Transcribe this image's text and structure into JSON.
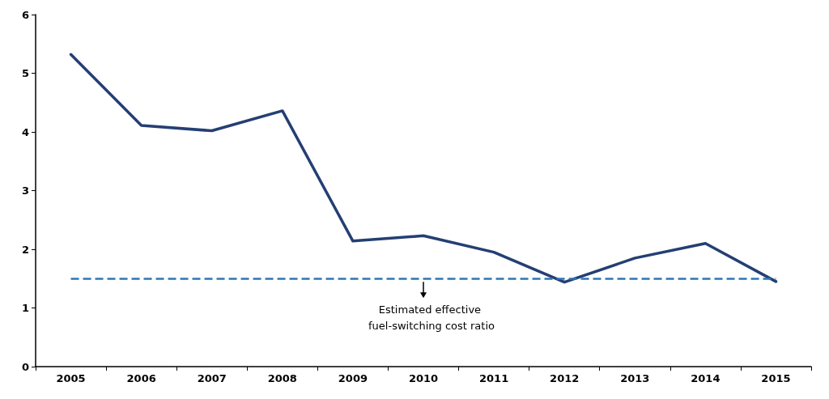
{
  "chart_data": {
    "type": "line",
    "categories": [
      "2005",
      "2006",
      "2007",
      "2008",
      "2009",
      "2010",
      "2011",
      "2012",
      "2013",
      "2014",
      "2015"
    ],
    "series": [
      {
        "color": "#243f73",
        "values": [
          5.32,
          4.11,
          4.02,
          4.36,
          2.14,
          2.23,
          1.95,
          1.44,
          1.85,
          2.1,
          1.45
        ]
      }
    ],
    "ylim": [
      0,
      6
    ],
    "yticks": [
      0,
      1,
      2,
      3,
      4,
      5,
      6
    ],
    "grid": false,
    "marker": "none",
    "line_style": "solid",
    "ref_lines": [
      {
        "axis": "y",
        "value": 1.5,
        "label": "Estimated effective fuel-switching cost ratio",
        "color": "#2e75b6",
        "line_style": "dashed"
      }
    ]
  }
}
